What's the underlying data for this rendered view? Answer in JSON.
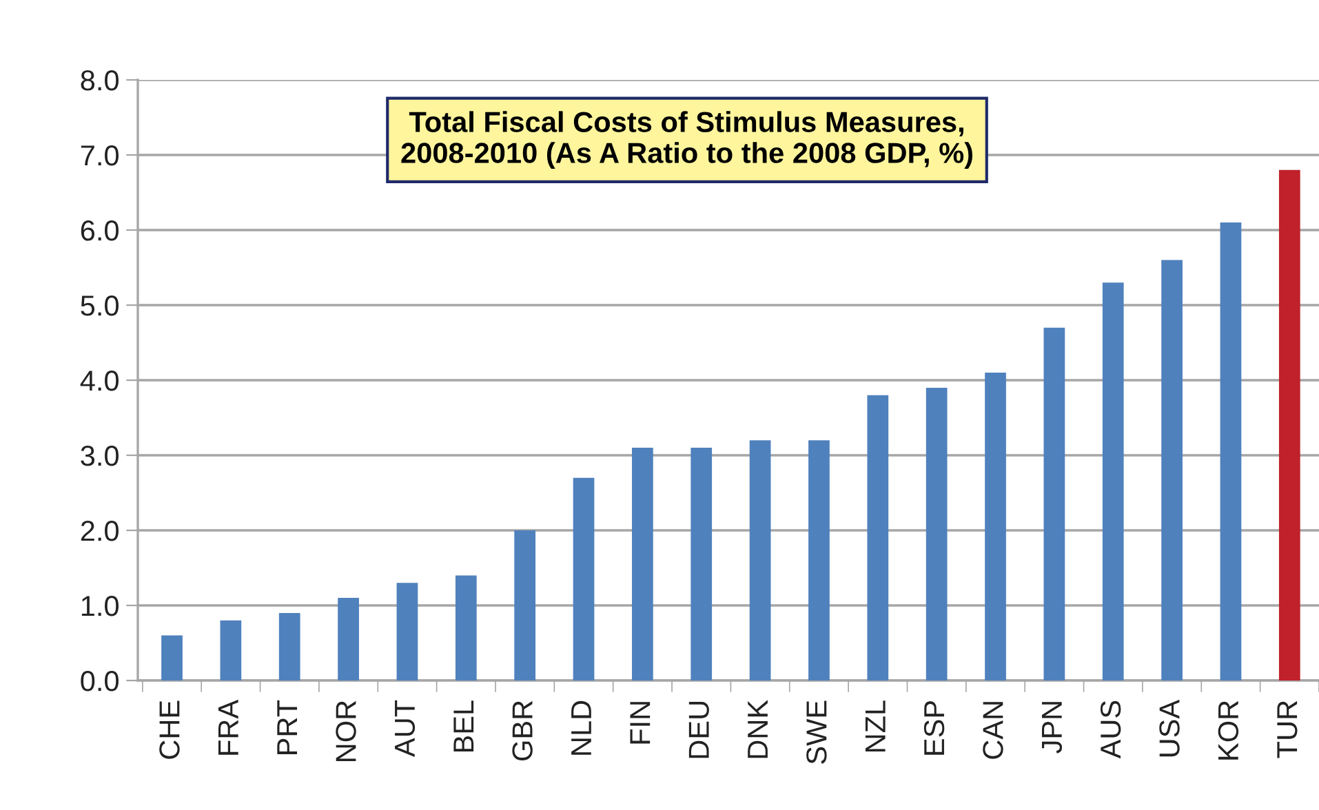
{
  "chart_data": {
    "type": "bar",
    "title": "Total Fiscal Costs of Stimulus Measures,\n2008-2010 (As A Ratio to the 2008 GDP, %)",
    "categories": [
      "CHE",
      "FRA",
      "PRT",
      "NOR",
      "AUT",
      "BEL",
      "GBR",
      "NLD",
      "FIN",
      "DEU",
      "DNK",
      "SWE",
      "NZL",
      "ESP",
      "CAN",
      "JPN",
      "AUS",
      "USA",
      "KOR",
      "TUR"
    ],
    "values": [
      0.6,
      0.8,
      0.9,
      1.1,
      1.3,
      1.4,
      2.0,
      2.7,
      3.1,
      3.1,
      3.2,
      3.2,
      3.8,
      3.9,
      4.1,
      4.7,
      5.3,
      5.6,
      6.1,
      6.8
    ],
    "colors": [
      "#4f81bd",
      "#4f81bd",
      "#4f81bd",
      "#4f81bd",
      "#4f81bd",
      "#4f81bd",
      "#4f81bd",
      "#4f81bd",
      "#4f81bd",
      "#4f81bd",
      "#4f81bd",
      "#4f81bd",
      "#4f81bd",
      "#4f81bd",
      "#4f81bd",
      "#4f81bd",
      "#4f81bd",
      "#4f81bd",
      "#4f81bd",
      "#c0212a"
    ],
    "ylim": [
      0,
      8
    ],
    "yticks": [
      {
        "value": 0,
        "label": "0.0"
      },
      {
        "value": 1,
        "label": "1.0"
      },
      {
        "value": 2,
        "label": "2.0"
      },
      {
        "value": 3,
        "label": "3.0"
      },
      {
        "value": 4,
        "label": "4.0"
      },
      {
        "value": 5,
        "label": "5.0"
      },
      {
        "value": 6,
        "label": "6.0"
      },
      {
        "value": 7,
        "label": "7.0"
      },
      {
        "value": 8,
        "label": "8.0"
      }
    ],
    "grid": "y",
    "legend": false
  }
}
